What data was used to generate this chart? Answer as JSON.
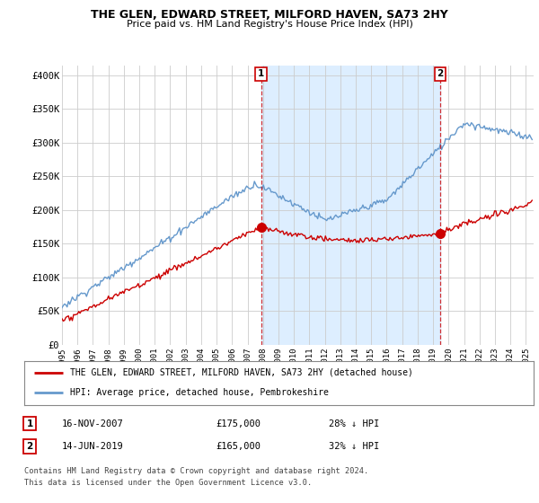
{
  "title": "THE GLEN, EDWARD STREET, MILFORD HAVEN, SA73 2HY",
  "subtitle": "Price paid vs. HM Land Registry's House Price Index (HPI)",
  "ylabel_ticks": [
    "£0",
    "£50K",
    "£100K",
    "£150K",
    "£200K",
    "£250K",
    "£300K",
    "£350K",
    "£400K"
  ],
  "ytick_values": [
    0,
    50000,
    100000,
    150000,
    200000,
    250000,
    300000,
    350000,
    400000
  ],
  "ylim": [
    0,
    415000
  ],
  "xlim_start": 1995.0,
  "xlim_end": 2025.5,
  "marker1_x": 2007.88,
  "marker1_y": 175000,
  "marker1_label": "1",
  "marker2_x": 2019.45,
  "marker2_y": 165000,
  "marker2_label": "2",
  "legend_line1": "THE GLEN, EDWARD STREET, MILFORD HAVEN, SA73 2HY (detached house)",
  "legend_line2": "HPI: Average price, detached house, Pembrokeshire",
  "table_row1_num": "1",
  "table_row1_date": "16-NOV-2007",
  "table_row1_price": "£175,000",
  "table_row1_hpi": "28% ↓ HPI",
  "table_row2_num": "2",
  "table_row2_date": "14-JUN-2019",
  "table_row2_price": "£165,000",
  "table_row2_hpi": "32% ↓ HPI",
  "footer": "Contains HM Land Registry data © Crown copyright and database right 2024.\nThis data is licensed under the Open Government Licence v3.0.",
  "red_color": "#cc0000",
  "blue_color": "#6699cc",
  "shade_color": "#ddeeff",
  "background_color": "#ffffff",
  "grid_color": "#cccccc"
}
